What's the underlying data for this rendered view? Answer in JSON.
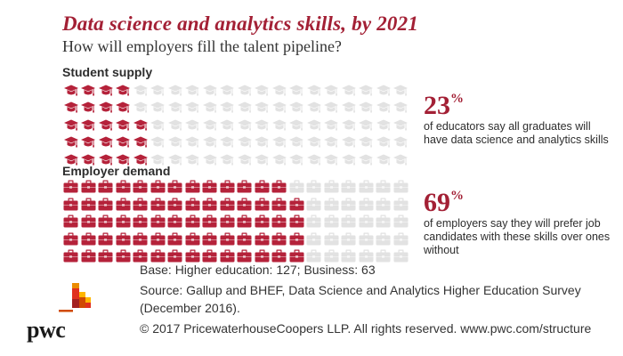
{
  "header": {
    "title": "Data science and analytics skills, by 2021",
    "subtitle": "How will employers fill the talent pipeline?"
  },
  "sections": [
    {
      "label": "Student supply",
      "icon": "graduation-cap-icon",
      "stat_number": "23",
      "stat_unit": "%",
      "stat_text": "of educators say all graduates will have data science and analytics skills",
      "filled_per_row": [
        4,
        4,
        5,
        5,
        5
      ]
    },
    {
      "label": "Employer demand",
      "icon": "briefcase-icon",
      "stat_number": "69",
      "stat_unit": "%",
      "stat_text": "of employers say they will prefer job candidates with these skills over ones without",
      "filled_per_row": [
        13,
        14,
        14,
        14,
        14
      ]
    }
  ],
  "footer": {
    "base": "Base: Higher education: 127; Business: 63",
    "source_line1": "Source: Gallup and BHEF, Data Science and Analytics Higher Education Survey",
    "source_line2": "(December 2016).",
    "copyright": "© 2017 PricewaterhouseCoopers LLP. All rights reserved. www.pwc.com/structure"
  },
  "logo": {
    "text": "pwc"
  },
  "colors": {
    "accent": "#a32035",
    "icon_filled": "#b5223a",
    "icon_empty": "#e2e2e2",
    "text": "#2d2d2d"
  },
  "chart_data": {
    "type": "table",
    "title": "Data science and analytics skills, by 2021",
    "subtitle": "How will employers fill the talent pipeline?",
    "form": "icon array (waffle), 20 columns x 5 rows = 100 icons per group",
    "categories": [
      "Student supply",
      "Employer demand"
    ],
    "values": [
      23,
      69
    ],
    "unit": "%",
    "series": [
      {
        "name": "Student supply",
        "icon": "graduation cap",
        "filled": 23,
        "total": 100,
        "annotation": "23% of educators say all graduates will have data science and analytics skills"
      },
      {
        "name": "Employer demand",
        "icon": "briefcase",
        "filled": 69,
        "total": 100,
        "annotation": "69% of employers say they will prefer job candidates with these skills over ones without"
      }
    ],
    "notes": [
      "Base: Higher education: 127; Business: 63",
      "Source: Gallup and BHEF, Data Science and Analytics Higher Education Survey (December 2016)."
    ]
  }
}
